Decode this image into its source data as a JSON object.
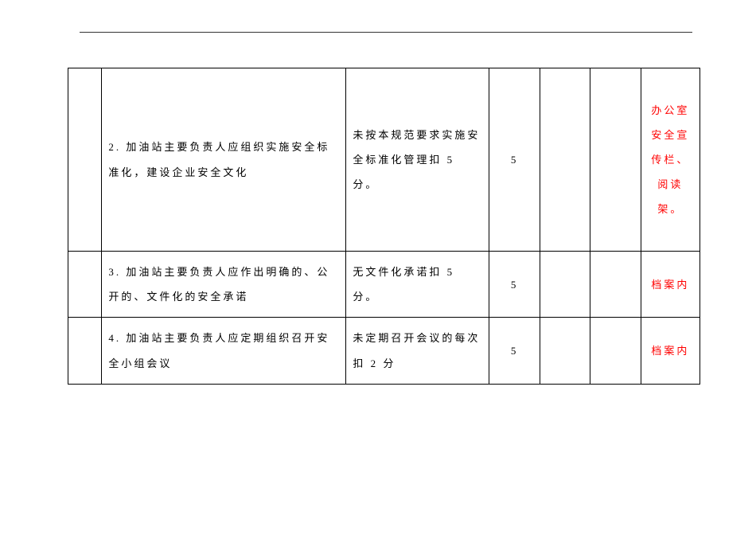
{
  "table": {
    "rows": [
      {
        "desc": "2. 加油站主要负责人应组织实施安全标准化，建设企业安全文化",
        "criteria": "未按本规范要求实施安全标准化管理扣 5 分。",
        "score": "5",
        "note": "办公室安全宣传栏、阅读架。"
      },
      {
        "desc": "3. 加油站主要负责人应作出明确的、公开的、文件化的安全承诺",
        "criteria": "无文件化承诺扣 5 分。",
        "score": "5",
        "note": "档案内"
      },
      {
        "desc": "4. 加油站主要负责人应定期组织召开安全小组会议",
        "criteria": "未定期召开会议的每次扣 2 分",
        "score": "5",
        "note": "档案内"
      }
    ]
  },
  "style": {
    "text_color": "#000000",
    "highlight_color": "#ff0000",
    "border_color": "#000000",
    "background": "#ffffff",
    "font_size": 13,
    "line_height": 2.4,
    "letter_spacing": 3
  }
}
